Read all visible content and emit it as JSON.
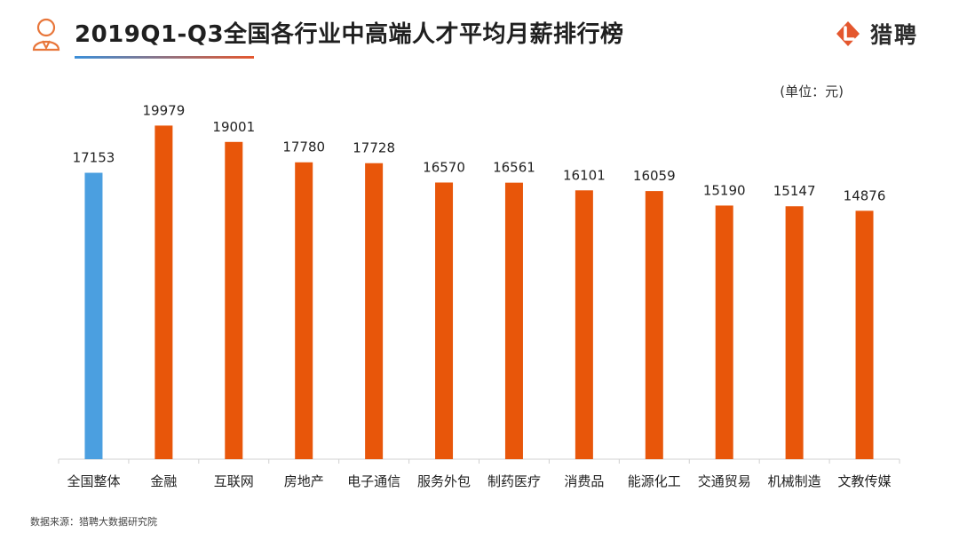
{
  "header": {
    "title": "2019Q1-Q3全国各行业中高端人才平均月薪排行榜",
    "brand_name": "猎聘",
    "logo_icon": "liepin-logo-icon",
    "avatar_icon": "person-avatar-icon"
  },
  "unit_label": "(单位：元)",
  "source_note": "数据来源：猎聘大数据研究院",
  "colors": {
    "highlight": "#4b9fe0",
    "bar": "#e8560a",
    "accent": "#e4572e"
  },
  "chart_data": {
    "type": "bar",
    "title": "2019Q1-Q3全国各行业中高端人才平均月薪排行榜",
    "xlabel": "",
    "ylabel": "",
    "ylim": [
      0,
      21000
    ],
    "grid": false,
    "categories": [
      "全国整体",
      "金融",
      "互联网",
      "房地产",
      "电子通信",
      "服务外包",
      "制药医疗",
      "消费品",
      "能源化工",
      "交通贸易",
      "机械制造",
      "文教传媒"
    ],
    "values": [
      17153,
      19979,
      19001,
      17780,
      17728,
      16570,
      16561,
      16101,
      16059,
      15190,
      15147,
      14876
    ],
    "highlight_index": 0
  }
}
